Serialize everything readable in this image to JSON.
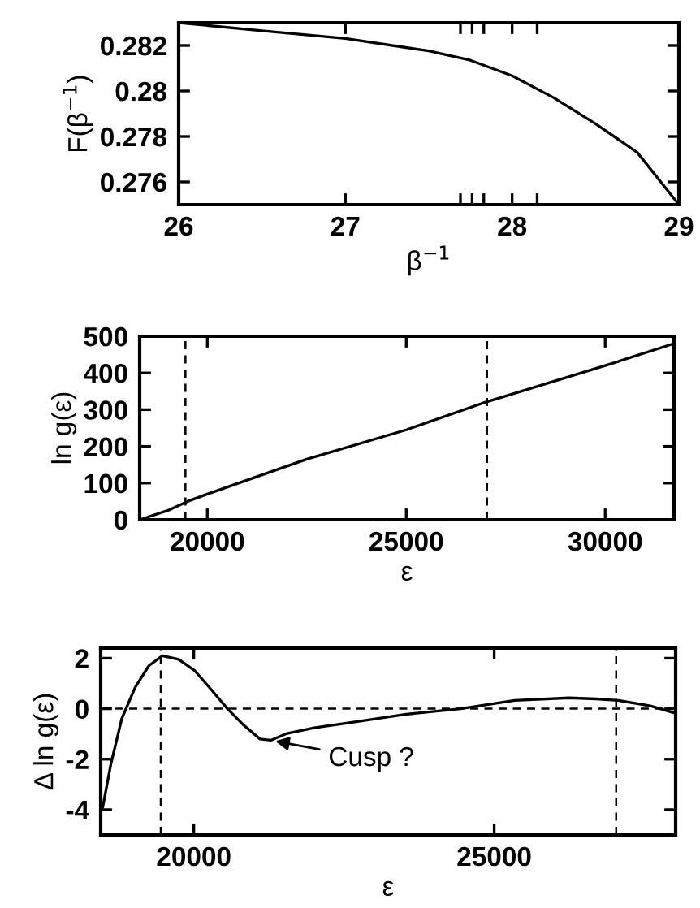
{
  "chart_data": [
    {
      "type": "line",
      "xlabel": "β$^{−1}$",
      "ylabel": "F(β$^{−1}$)",
      "xlim": [
        26,
        29
      ],
      "ylim": [
        0.275,
        0.283
      ],
      "xticks": [
        26,
        27,
        {
          "value": 27.69,
          "label": null
        },
        {
          "value": 27.76,
          "label": null
        },
        {
          "value": 27.83,
          "label": null
        },
        28,
        {
          "value": 28.15,
          "label": null
        },
        29
      ],
      "yticks": [
        0.276,
        0.278,
        {
          "value": 0.28,
          "label": "0.28"
        },
        0.282
      ],
      "grid": false,
      "legend": false,
      "x": [
        26,
        26.5,
        27,
        27.5,
        27.75,
        28,
        28.25,
        28.5,
        28.75,
        29
      ],
      "series": [
        {
          "color": "#000000",
          "values": [
            0.283,
            0.28265,
            0.28231,
            0.28176,
            0.28135,
            0.28067,
            0.2797,
            0.27856,
            0.2773,
            0.275
          ]
        }
      ]
    },
    {
      "type": "line",
      "xlabel": "ε",
      "ylabel": "ln g(ε)",
      "xlim": [
        18300,
        31730
      ],
      "ylim": [
        0,
        500
      ],
      "xticks": [
        20000,
        25000,
        30000
      ],
      "yticks": [
        0,
        100,
        200,
        300,
        400,
        500
      ],
      "grid": false,
      "legend": false,
      "x": [
        18300,
        19000,
        19500,
        20000,
        22500,
        25000,
        26900,
        30000,
        31730
      ],
      "series": [
        {
          "color": "#000000",
          "values": [
            0,
            25,
            50,
            70,
            165,
            245,
            317,
            420,
            480
          ]
        }
      ],
      "ref_lines": [
        {
          "axis": "x",
          "value": 19450,
          "color": "#000000",
          "line_style": "dashed"
        },
        {
          "axis": "x",
          "value": 27030,
          "color": "#000000",
          "line_style": "dashed"
        }
      ]
    },
    {
      "type": "line",
      "xlabel": "ε",
      "ylabel": "Δ ln g(ε)",
      "xlim": [
        18450,
        28020
      ],
      "ylim": [
        -5,
        2.4
      ],
      "xticks": [
        20000,
        25000
      ],
      "yticks": [
        -4,
        -2,
        0,
        2
      ],
      "grid": false,
      "legend": false,
      "x": [
        18484,
        18619,
        18800,
        19025,
        19251,
        19477,
        19747,
        20018,
        20289,
        20560,
        20830,
        21101,
        21282,
        21552,
        22004,
        22635,
        23538,
        24440,
        25343,
        26245,
        26697,
        27058,
        27599,
        28006
      ],
      "series": [
        {
          "color": "#000000",
          "values": [
            -3.9,
            -2.2,
            -0.4,
            0.85,
            1.7,
            2.1,
            1.95,
            1.5,
            0.76,
            0,
            -0.65,
            -1.2,
            -1.25,
            -0.98,
            -0.76,
            -0.54,
            -0.22,
            0,
            0.33,
            0.43,
            0.39,
            0.33,
            0.11,
            -0.17
          ]
        }
      ],
      "ref_lines": [
        {
          "axis": "x",
          "value": 19450,
          "color": "#000000",
          "line_style": "dashed"
        },
        {
          "axis": "x",
          "value": 27030,
          "color": "#000000",
          "line_style": "dashed"
        },
        {
          "axis": "y",
          "value": 0,
          "color": "#000000",
          "line_style": "dashed"
        }
      ],
      "annotations": [
        {
          "text": "Cusp ?",
          "x": 21282,
          "y": -1.25
        }
      ]
    }
  ]
}
